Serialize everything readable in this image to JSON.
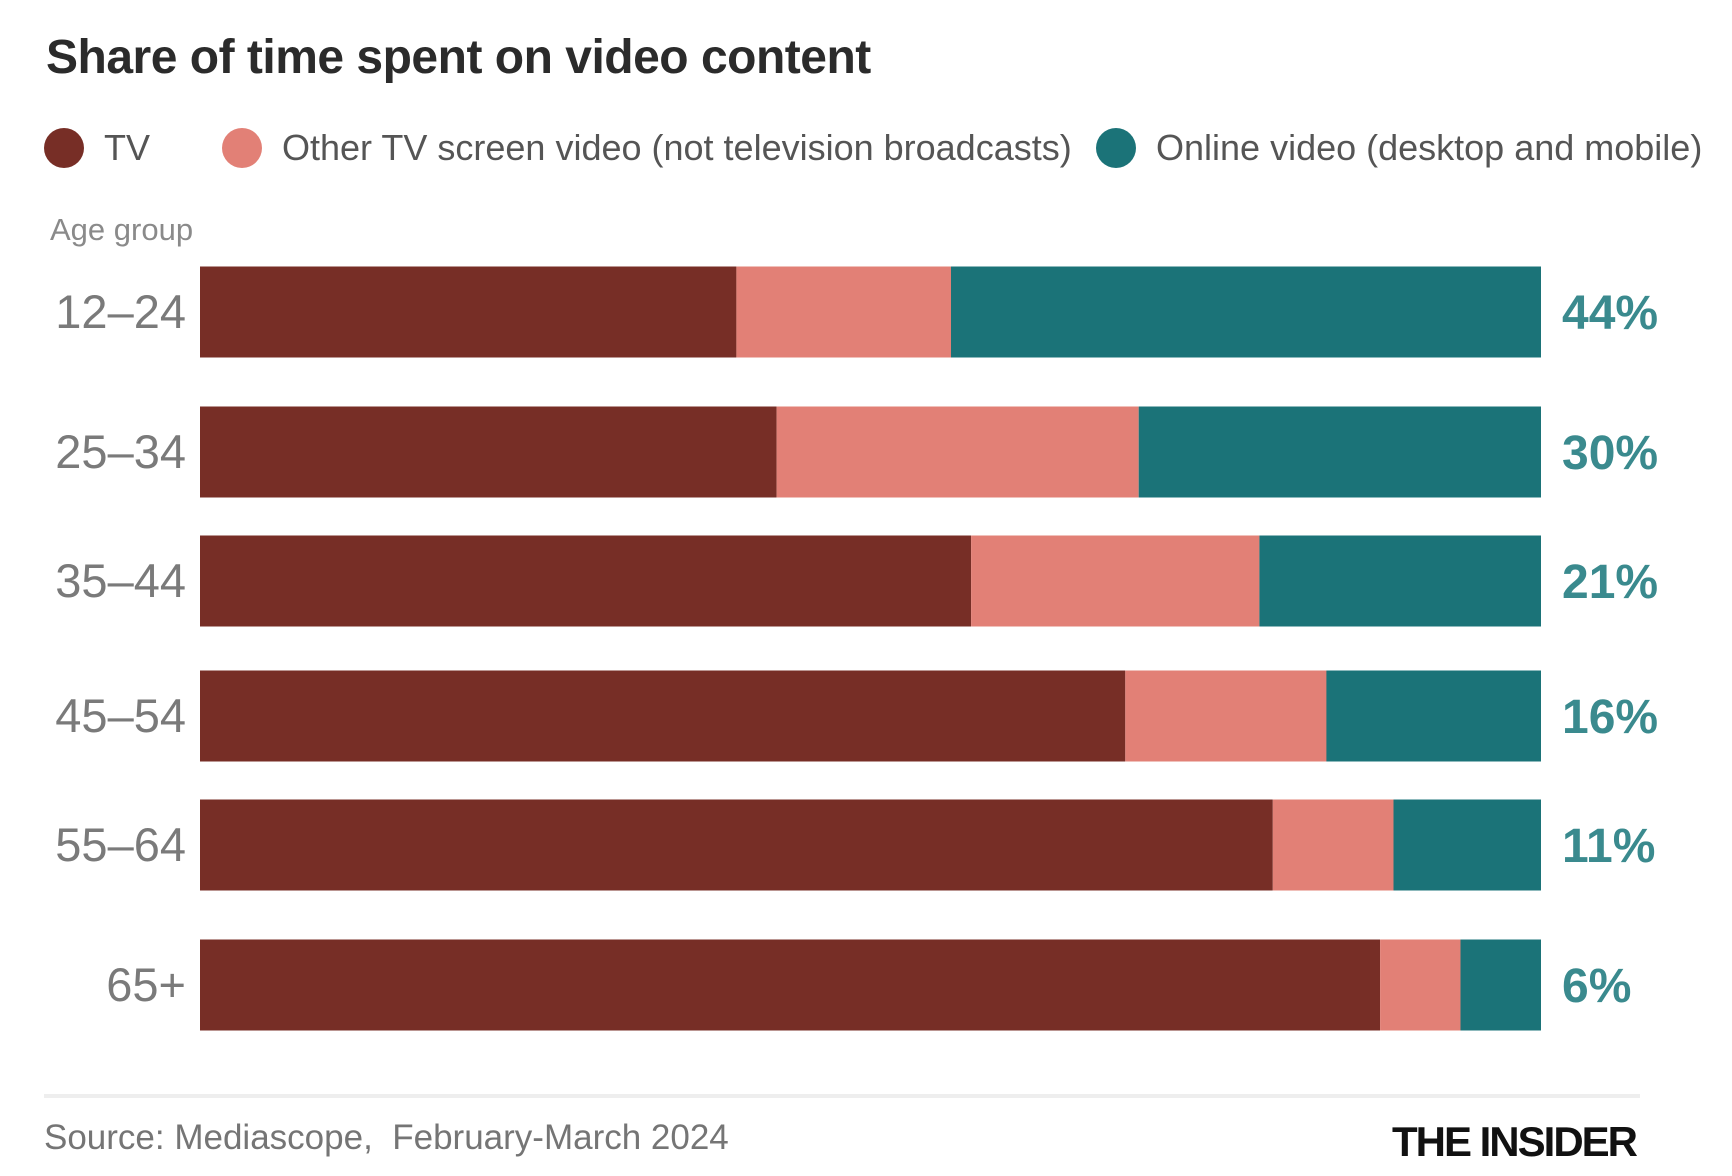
{
  "chart_data": {
    "type": "bar",
    "orientation": "horizontal",
    "stacked": true,
    "title": "Share of time spent on video content",
    "ylabel": "Age group",
    "categories": [
      "12–24",
      "25–34",
      "35–44",
      "45–54",
      "55–64",
      "65+"
    ],
    "series": [
      {
        "name": "TV",
        "color": "#772e26",
        "values": [
          40,
          43,
          57.5,
          69,
          80,
          88
        ]
      },
      {
        "name": "Other TV screen video (not television broadcasts)",
        "color": "#e28076",
        "values": [
          16,
          27,
          21.5,
          15,
          9,
          6
        ]
      },
      {
        "name": "Online video (desktop and mobile)",
        "color": "#1b7378",
        "values": [
          44,
          30,
          21,
          16,
          11,
          6
        ]
      }
    ],
    "data_labels": [
      "44%",
      "30%",
      "21%",
      "16%",
      "11%",
      "6%"
    ],
    "data_label_color": "#3a8a8e",
    "xlim": [
      0,
      100
    ],
    "grid": false,
    "legend_position": "top"
  },
  "footer": {
    "source": "Source: Mediascope,  February-March 2024",
    "brand": "THE INSIDER"
  }
}
